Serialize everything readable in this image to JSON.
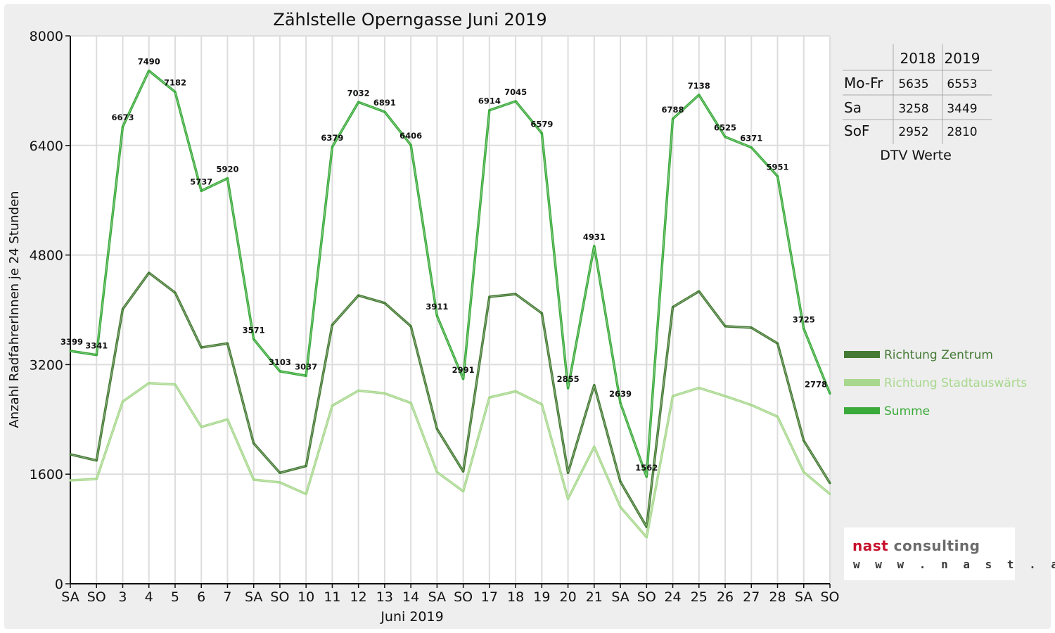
{
  "chart_data": {
    "type": "line",
    "title": "Zählstelle Operngasse Juni 2019",
    "xlabel": "Juni 2019",
    "ylabel": "Anzahl RadfahrerInnen je 24 Stunden",
    "ylim": [
      0,
      8000
    ],
    "yticks": [
      "0",
      "1600",
      "3200",
      "4800",
      "6400",
      "8000"
    ],
    "grid": true,
    "legend_position": "right",
    "categories": [
      "SA",
      "SO",
      "3",
      "4",
      "5",
      "6",
      "7",
      "SA",
      "SO",
      "10",
      "11",
      "12",
      "13",
      "14",
      "SA",
      "SO",
      "17",
      "18",
      "19",
      "20",
      "21",
      "SA",
      "SO",
      "24",
      "25",
      "26",
      "27",
      "28",
      "SA",
      "SO"
    ],
    "red_categories": [
      1,
      8,
      9,
      15,
      19,
      22,
      29
    ],
    "series": [
      {
        "name": "Richtung Zentrum",
        "color": "#447a33",
        "values": [
          1890,
          1800,
          4010,
          4540,
          4250,
          3450,
          3510,
          2050,
          1620,
          1720,
          3780,
          4210,
          4100,
          3760,
          2260,
          1640,
          4190,
          4230,
          3950,
          1620,
          2900,
          1490,
          830,
          4040,
          4270,
          3760,
          3740,
          3510,
          2090,
          1470
        ]
      },
      {
        "name": "Richtung Stadtauswärts",
        "color": "#a8d88e",
        "values": [
          1510,
          1530,
          2660,
          2930,
          2910,
          2290,
          2400,
          1520,
          1480,
          1310,
          2600,
          2820,
          2780,
          2640,
          1630,
          1350,
          2720,
          2810,
          2620,
          1240,
          2000,
          1120,
          680,
          2740,
          2860,
          2740,
          2610,
          2440,
          1630,
          1310
        ]
      },
      {
        "name": "Summe",
        "color": "#3aaa3a",
        "values": [
          3399,
          3341,
          6673,
          7490,
          7182,
          5737,
          5920,
          3571,
          3103,
          3037,
          6379,
          7032,
          6891,
          6406,
          3911,
          2991,
          6914,
          7045,
          6579,
          2855,
          4931,
          2639,
          1562,
          6788,
          7138,
          6525,
          6371,
          5951,
          3725,
          2778
        ]
      }
    ],
    "data_labels": [
      "3399",
      "3341",
      "6673",
      "7490",
      "7182",
      "5737",
      "5920",
      "3571",
      "3103",
      "3037",
      "6379",
      "7032",
      "6891",
      "6406",
      "3911",
      "2991",
      "6914",
      "7045",
      "6579",
      "2855",
      "4931",
      "2639",
      "1562",
      "6788",
      "7138",
      "6525",
      "6371",
      "5951",
      "3725",
      "2778"
    ]
  },
  "dtv_table": {
    "headers": [
      "",
      "2018",
      "2019"
    ],
    "rows": [
      {
        "label": "Mo-Fr",
        "v2018": "5635",
        "v2019": "6553"
      },
      {
        "label": "Sa",
        "v2018": "3258",
        "v2019": "3449"
      },
      {
        "label": "SoF",
        "v2018": "2952",
        "v2019": "2810"
      }
    ],
    "caption": "DTV Werte"
  },
  "logo": {
    "word1": "nast",
    "word2": "consulting",
    "url": "w w w . n a s t . a t"
  }
}
